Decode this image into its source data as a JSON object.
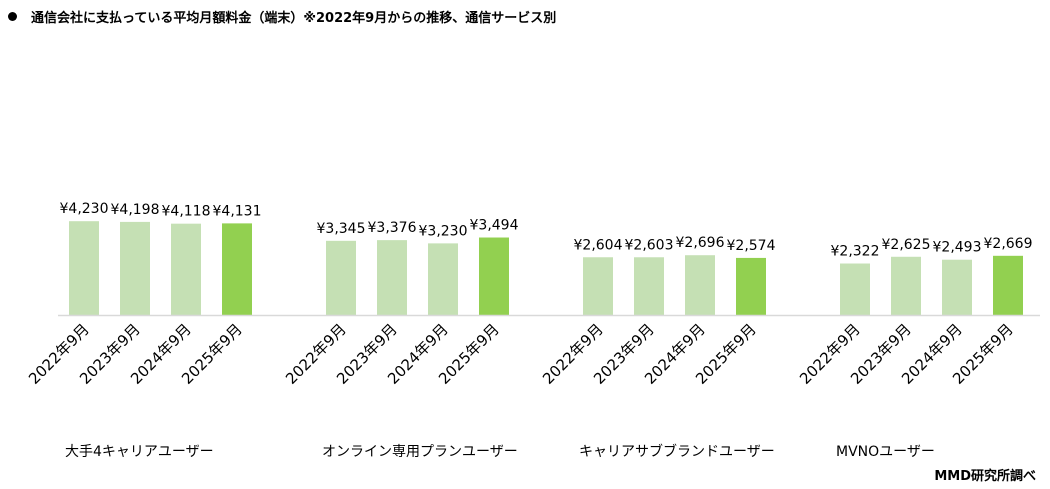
{
  "chart_data": {
    "type": "bar",
    "title": "通信会社に支払っている平均月額料金（端末）※2022年9月からの推移、通信サービス別",
    "source": "MMD研究所調べ",
    "xlabel": "",
    "ylabel": "",
    "ylim": [
      0,
      12400
    ],
    "grid": false,
    "value_prefix": "¥",
    "periods": [
      "2022年9月",
      "2023年9月",
      "2024年9月",
      "2025年9月"
    ],
    "groups": [
      {
        "name": "大手4キャリアユーザー",
        "values": [
          4230,
          4198,
          4118,
          4131
        ]
      },
      {
        "name": "オンライン専用プランユーザー",
        "values": [
          3345,
          3376,
          3230,
          3494
        ]
      },
      {
        "name": "キャリアサブブランドユーザー",
        "values": [
          2604,
          2603,
          2696,
          2574
        ]
      },
      {
        "name": "MVNOユーザー",
        "values": [
          2322,
          2625,
          2493,
          2669
        ]
      }
    ],
    "colors": {
      "past": "#c5e0b4",
      "latest": "#92d050",
      "axis": "#d9d9d9"
    }
  }
}
